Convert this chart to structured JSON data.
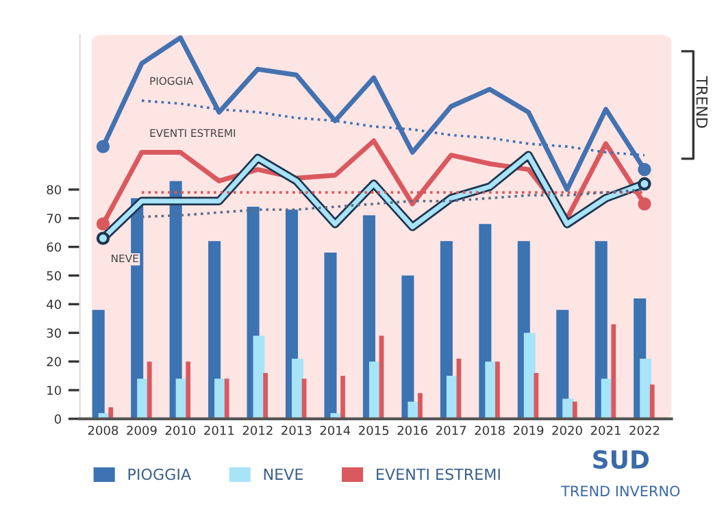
{
  "chart_data": {
    "type": "bar",
    "title": "SUD",
    "subtitle": "TREND INVERNO",
    "categories": [
      "2008",
      "2009",
      "2010",
      "2011",
      "2012",
      "2013",
      "2014",
      "2015",
      "2016",
      "2017",
      "2018",
      "2019",
      "2020",
      "2021",
      "2022"
    ],
    "series": [
      {
        "name": "PIOGGIA",
        "color": "#3b73b3",
        "values": [
          38,
          77,
          83,
          62,
          74,
          73,
          58,
          71,
          50,
          62,
          68,
          62,
          38,
          62,
          42
        ]
      },
      {
        "name": "NEVE",
        "color": "#a8e4f8",
        "values": [
          2,
          14,
          14,
          14,
          29,
          21,
          2,
          20,
          6,
          15,
          20,
          30,
          7,
          14,
          21
        ]
      },
      {
        "name": "EVENTI ESTREMI",
        "color": "#d9595e",
        "values": [
          4,
          20,
          20,
          14,
          16,
          14,
          15,
          29,
          9,
          21,
          20,
          16,
          6,
          33,
          12
        ]
      },
      {
        "name": "PIOGGIA",
        "type": "line",
        "color": "#4472b0",
        "values": [
          95,
          124,
          133,
          107,
          122,
          120,
          104,
          119,
          93,
          109,
          115,
          107,
          80,
          108,
          87
        ]
      },
      {
        "name": "EVENTI ESTREMI",
        "type": "line",
        "color": "#d9595e",
        "values": [
          68,
          93,
          93,
          83,
          87,
          84,
          85,
          97,
          75,
          92,
          89,
          87,
          70,
          96,
          75
        ]
      },
      {
        "name": "NEVE",
        "type": "line",
        "color": "#a8e4f8",
        "values": [
          63,
          76,
          76,
          76,
          91,
          83,
          68,
          82,
          67,
          77,
          81,
          92,
          68,
          77,
          82
        ]
      },
      {
        "type": "line",
        "line_style": "dotted",
        "color": "#4472b0",
        "values": [
          null,
          111,
          110,
          108,
          107,
          105,
          104,
          102,
          101,
          99,
          98,
          96,
          95,
          93,
          92
        ]
      },
      {
        "type": "line",
        "line_style": "dotted",
        "color": "#d9595e",
        "values": [
          null,
          79,
          79,
          79,
          79,
          79,
          79,
          79,
          79,
          79,
          79,
          79,
          79,
          79,
          79
        ]
      },
      {
        "type": "line",
        "line_style": "dotted",
        "color": "#5a6f88",
        "values": [
          null,
          70.5,
          71,
          72,
          73,
          73,
          74,
          75,
          76,
          76,
          77,
          78,
          78,
          79,
          80
        ]
      }
    ],
    "ylim": [
      0,
      134
    ],
    "yticks": [
      0,
      10,
      20,
      30,
      40,
      50,
      60,
      70,
      80
    ],
    "annotations": [
      "TREND"
    ],
    "legend": "bottom",
    "grid": false
  }
}
